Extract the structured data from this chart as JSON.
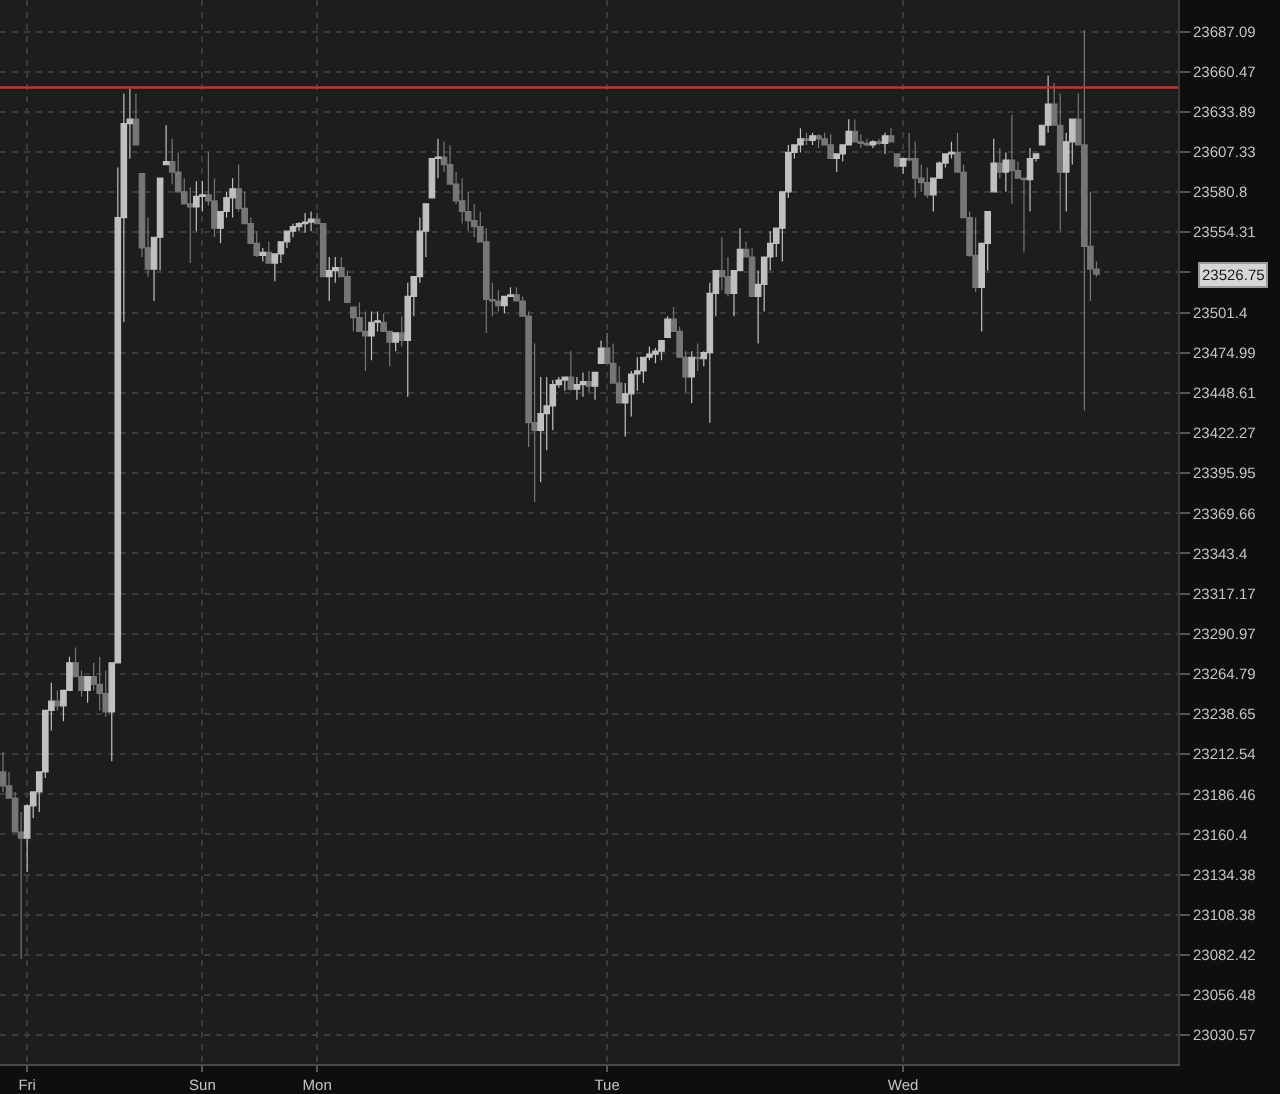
{
  "chart_data": {
    "type": "candlestick",
    "log": true,
    "grid": true,
    "categories": [
      null,
      null,
      null,
      null,
      "Fri",
      null,
      null,
      null,
      null,
      null,
      null,
      null,
      null,
      null,
      null,
      null,
      null,
      null,
      null,
      null,
      null,
      null,
      null,
      null,
      null,
      null,
      null,
      null,
      null,
      null,
      null,
      null,
      null,
      "Sun",
      null,
      null,
      null,
      null,
      null,
      null,
      null,
      null,
      null,
      null,
      null,
      null,
      null,
      null,
      null,
      null,
      null,
      null,
      "Mon",
      null,
      null,
      null,
      null,
      null,
      null,
      null,
      null,
      null,
      null,
      null,
      null,
      null,
      null,
      null,
      null,
      null,
      null,
      null,
      null,
      null,
      null,
      null,
      null,
      null,
      null,
      null,
      null,
      null,
      null,
      null,
      null,
      null,
      null,
      null,
      null,
      null,
      null,
      null,
      null,
      null,
      null,
      null,
      null,
      null,
      null,
      null,
      "Tue",
      null,
      null,
      null,
      null,
      null,
      null,
      null,
      null,
      null,
      null,
      null,
      null,
      null,
      null,
      null,
      null,
      null,
      null,
      null,
      null,
      null,
      null,
      null,
      null,
      null,
      null,
      null,
      null,
      null,
      null,
      null,
      null,
      null,
      null,
      null,
      null,
      null,
      null,
      null,
      null,
      null,
      null,
      null,
      null,
      null,
      null,
      null,
      null,
      "Wed",
      null,
      null,
      null,
      null,
      null,
      null,
      null,
      null,
      null,
      null,
      null,
      null,
      null,
      null,
      null,
      null,
      null,
      null,
      null,
      null,
      null,
      null,
      null,
      null,
      null,
      null,
      null,
      null,
      null,
      null,
      null,
      null,
      null,
      null,
      null,
      null,
      null,
      null,
      null,
      null,
      null,
      null,
      null,
      null,
      null
    ],
    "ohlc": [
      [
        23201,
        23214,
        23188,
        23192
      ],
      [
        23192,
        23201,
        23184,
        23184
      ],
      [
        23184,
        23188,
        23162,
        23162
      ],
      [
        23162,
        23175,
        23080,
        23158
      ],
      [
        23158,
        23180,
        23136,
        23179
      ],
      [
        23179,
        23188,
        23171,
        23188
      ],
      [
        23188,
        23201,
        23175,
        23201
      ],
      [
        23201,
        23241,
        23197,
        23241
      ],
      [
        23241,
        23259,
        23228,
        23247
      ],
      [
        23247,
        23254,
        23241,
        23244
      ],
      [
        23244,
        23254,
        23234,
        23254
      ],
      [
        23254,
        23276,
        23254,
        23272
      ],
      [
        23272,
        23282,
        23263,
        23263
      ],
      [
        23263,
        23267,
        23250,
        23254
      ],
      [
        23254,
        23263,
        23246,
        23263
      ],
      [
        23263,
        23272,
        23254,
        23258
      ],
      [
        23258,
        23276,
        23241,
        23252
      ],
      [
        23252,
        23267,
        23237,
        23240
      ],
      [
        23240,
        23272,
        23208,
        23272
      ],
      [
        23272,
        23597,
        23272,
        23564
      ],
      [
        23564,
        23646,
        23495,
        23626
      ],
      [
        23626,
        23649,
        23603,
        23629
      ],
      [
        23629,
        23646,
        23612,
        23612
      ],
      [
        23593,
        23593,
        23538,
        23544
      ],
      [
        23544,
        23564,
        23525,
        23530
      ],
      [
        23530,
        23551,
        23509,
        23551
      ],
      [
        23551,
        23590,
        23529,
        23590
      ],
      [
        23599,
        23625,
        23599,
        23601
      ],
      [
        23601,
        23616,
        23586,
        23594
      ],
      [
        23594,
        23607,
        23581,
        23581
      ],
      [
        23581,
        23590,
        23573,
        23573
      ],
      [
        23573,
        23584,
        23534,
        23571
      ],
      [
        23571,
        23588,
        23555,
        23578
      ],
      [
        23578,
        23588,
        23568,
        23579
      ],
      [
        23579,
        23607,
        23572,
        23575
      ],
      [
        23575,
        23590,
        23551,
        23557
      ],
      [
        23557,
        23568,
        23547,
        23568
      ],
      [
        23568,
        23581,
        23564,
        23577
      ],
      [
        23577,
        23590,
        23564,
        23583
      ],
      [
        23583,
        23599,
        23568,
        23570
      ],
      [
        23570,
        23581,
        23560,
        23560
      ],
      [
        23560,
        23564,
        23547,
        23547
      ],
      [
        23547,
        23555,
        23538,
        23539
      ],
      [
        23539,
        23544,
        23535,
        23541
      ],
      [
        23541,
        23548,
        23534,
        23534
      ],
      [
        23534,
        23540,
        23522,
        23540
      ],
      [
        23540,
        23548,
        23534,
        23548
      ],
      [
        23548,
        23555,
        23544,
        23555
      ],
      [
        23555,
        23560,
        23551,
        23558
      ],
      [
        23558,
        23561,
        23555,
        23560
      ],
      [
        23560,
        23567,
        23554,
        23561
      ],
      [
        23561,
        23568,
        23555,
        23563
      ],
      [
        23563,
        23567,
        23560,
        23560
      ],
      [
        23560,
        23560,
        23525,
        23525
      ],
      [
        23525,
        23538,
        23509,
        23529
      ],
      [
        23529,
        23538,
        23521,
        23531
      ],
      [
        23531,
        23538,
        23525,
        23525
      ],
      [
        23525,
        23529,
        23508,
        23508
      ],
      [
        23505,
        23505,
        23489,
        23498
      ],
      [
        23498,
        23508,
        23489,
        23489
      ],
      [
        23489,
        23502,
        23463,
        23486
      ],
      [
        23486,
        23502,
        23470,
        23495
      ],
      [
        23495,
        23502,
        23489,
        23496
      ],
      [
        23495,
        23501,
        23489,
        23489
      ],
      [
        23489,
        23489,
        23466,
        23482
      ],
      [
        23482,
        23488,
        23476,
        23488
      ],
      [
        23488,
        23499,
        23479,
        23483
      ],
      [
        23483,
        23521,
        23446,
        23512
      ],
      [
        23512,
        23525,
        23499,
        23525
      ],
      [
        23525,
        23564,
        23521,
        23555
      ],
      [
        23555,
        23573,
        23538,
        23573
      ],
      [
        23577,
        23603,
        23577,
        23603
      ],
      [
        23603,
        23616,
        23590,
        23604
      ],
      [
        23604,
        23614,
        23594,
        23599
      ],
      [
        23599,
        23612,
        23586,
        23586
      ],
      [
        23586,
        23594,
        23573,
        23575
      ],
      [
        23575,
        23590,
        23560,
        23568
      ],
      [
        23568,
        23581,
        23555,
        23562
      ],
      [
        23562,
        23573,
        23551,
        23558
      ],
      [
        23558,
        23568,
        23548,
        23548
      ],
      [
        23548,
        23557,
        23488,
        23510
      ],
      [
        23510,
        23521,
        23499,
        23509
      ],
      [
        23509,
        23516,
        23502,
        23506
      ],
      [
        23506,
        23512,
        23501,
        23512
      ],
      [
        23512,
        23518,
        23512,
        23513
      ],
      [
        23513,
        23518,
        23509,
        23509
      ],
      [
        23509,
        23512,
        23499,
        23499
      ],
      [
        23499,
        23502,
        23413,
        23429
      ],
      [
        23429,
        23481,
        23377,
        23424
      ],
      [
        23424,
        23459,
        23390,
        23435
      ],
      [
        23435,
        23459,
        23411,
        23440
      ],
      [
        23440,
        23457,
        23424,
        23454
      ],
      [
        23454,
        23459,
        23452,
        23457
      ],
      [
        23457,
        23459,
        23450,
        23459
      ],
      [
        23459,
        23476,
        23450,
        23451
      ],
      [
        23451,
        23459,
        23444,
        23454
      ],
      [
        23454,
        23462,
        23446,
        23456
      ],
      [
        23456,
        23463,
        23449,
        23453
      ],
      [
        23453,
        23462,
        23444,
        23462
      ],
      [
        23468,
        23483,
        23468,
        23478
      ],
      [
        23478,
        23488,
        23468,
        23468
      ],
      [
        23468,
        23481,
        23455,
        23455
      ],
      [
        23455,
        23466,
        23442,
        23442
      ],
      [
        23442,
        23455,
        23420,
        23448
      ],
      [
        23448,
        23463,
        23433,
        23461
      ],
      [
        23461,
        23472,
        23450,
        23463
      ],
      [
        23463,
        23472,
        23455,
        23472
      ],
      [
        23472,
        23479,
        23470,
        23474
      ],
      [
        23474,
        23478,
        23468,
        23476
      ],
      [
        23476,
        23483,
        23470,
        23483
      ],
      [
        23485,
        23499,
        23485,
        23497
      ],
      [
        23497,
        23505,
        23489,
        23489
      ],
      [
        23489,
        23492,
        23472,
        23472
      ],
      [
        23472,
        23476,
        23449,
        23459
      ],
      [
        23459,
        23476,
        23442,
        23472
      ],
      [
        23472,
        23481,
        23463,
        23471
      ],
      [
        23471,
        23476,
        23466,
        23475
      ],
      [
        23475,
        23521,
        23429,
        23514
      ],
      [
        23514,
        23529,
        23499,
        23529
      ],
      [
        23529,
        23551,
        23516,
        23525
      ],
      [
        23525,
        23538,
        23512,
        23514
      ],
      [
        23514,
        23529,
        23499,
        23529
      ],
      [
        23529,
        23557,
        23529,
        23543
      ],
      [
        23543,
        23548,
        23538,
        23538
      ],
      [
        23538,
        23544,
        23512,
        23512
      ],
      [
        23512,
        23529,
        23481,
        23520
      ],
      [
        23520,
        23538,
        23502,
        23538
      ],
      [
        23538,
        23555,
        23529,
        23547
      ],
      [
        23547,
        23557,
        23538,
        23557
      ],
      [
        23557,
        23581,
        23535,
        23581
      ],
      [
        23581,
        23612,
        23577,
        23607
      ],
      [
        23607,
        23612,
        23603,
        23612
      ],
      [
        23612,
        23623,
        23607,
        23616
      ],
      [
        23616,
        23620,
        23612,
        23615
      ],
      [
        23615,
        23620,
        23612,
        23618
      ],
      [
        23618,
        23619,
        23610,
        23616
      ],
      [
        23616,
        23620,
        23612,
        23612
      ],
      [
        23612,
        23619,
        23603,
        23603
      ],
      [
        23603,
        23606,
        23594,
        23606
      ],
      [
        23606,
        23612,
        23601,
        23612
      ],
      [
        23612,
        23629,
        23612,
        23621
      ],
      [
        23621,
        23629,
        23614,
        23614
      ],
      [
        23614,
        23619,
        23610,
        23613
      ],
      [
        23613,
        23616,
        23611,
        23612
      ],
      [
        23612,
        23615,
        23610,
        23614
      ],
      [
        23614,
        23616,
        23612,
        23613
      ],
      [
        23613,
        23620,
        23606,
        23618
      ],
      [
        23618,
        23623,
        23614,
        23614
      ],
      [
        23606,
        23606,
        23597,
        23598
      ],
      [
        23598,
        23603,
        23593,
        23603
      ],
      [
        23603,
        23620,
        23601,
        23602
      ],
      [
        23603,
        23614,
        23577,
        23590
      ],
      [
        23590,
        23599,
        23581,
        23587
      ],
      [
        23587,
        23597,
        23577,
        23579
      ],
      [
        23579,
        23590,
        23568,
        23590
      ],
      [
        23590,
        23601,
        23590,
        23600
      ],
      [
        23600,
        23606,
        23597,
        23606
      ],
      [
        23606,
        23614,
        23603,
        23607
      ],
      [
        23607,
        23620,
        23594,
        23594
      ],
      [
        23594,
        23599,
        23564,
        23564
      ],
      [
        23564,
        23568,
        23538,
        23539
      ],
      [
        23539,
        23564,
        23515,
        23518
      ],
      [
        23518,
        23547,
        23489,
        23547
      ],
      [
        23547,
        23568,
        23529,
        23568
      ],
      [
        23581,
        23616,
        23581,
        23600
      ],
      [
        23600,
        23610,
        23590,
        23594
      ],
      [
        23594,
        23607,
        23581,
        23602
      ],
      [
        23602,
        23632,
        23573,
        23595
      ],
      [
        23595,
        23601,
        23590,
        23590
      ],
      [
        23590,
        23590,
        23541,
        23589
      ],
      [
        23589,
        23610,
        23568,
        23603
      ],
      [
        23603,
        23606,
        23601,
        23606
      ],
      [
        23612,
        23625,
        23612,
        23625
      ],
      [
        23625,
        23658,
        23620,
        23639
      ],
      [
        23639,
        23653,
        23625,
        23625
      ],
      [
        23625,
        23646,
        23555,
        23594
      ],
      [
        23594,
        23620,
        23568,
        23614
      ],
      [
        23614,
        23629,
        23599,
        23629
      ],
      [
        23629,
        23646,
        23612,
        23612
      ],
      [
        23612,
        23688,
        23437,
        23545
      ],
      [
        23545,
        23581,
        23509,
        23530
      ],
      [
        23530,
        23535,
        23525,
        23526.75
      ],
      null,
      null,
      null,
      null,
      null,
      null,
      null,
      null,
      null,
      null,
      null,
      null,
      null
    ],
    "colors": [
      "#767676",
      "#767676",
      "#767676",
      "#767676",
      "#c0c0c0",
      "#c0c0c0",
      "#c0c0c0",
      "#c0c0c0",
      "#c0c0c0",
      "#767676",
      "#c0c0c0",
      "#c0c0c0",
      "#767676",
      "#767676",
      "#c0c0c0",
      "#767676",
      "#767676",
      "#767676",
      "#c0c0c0",
      "#c0c0c0",
      "#c0c0c0",
      "#c0c0c0",
      "#767676",
      "#767676",
      "#767676",
      "#c0c0c0",
      "#c0c0c0",
      "#c0c0c0",
      "#767676",
      "#767676",
      "#767676",
      "#767676",
      "#c0c0c0",
      "#c0c0c0",
      "#767676",
      "#767676",
      "#c0c0c0",
      "#c0c0c0",
      "#c0c0c0",
      "#767676",
      "#767676",
      "#767676",
      "#767676",
      "#c0c0c0",
      "#767676",
      "#c0c0c0",
      "#c0c0c0",
      "#c0c0c0",
      "#c0c0c0",
      "#c0c0c0",
      "#c0c0c0",
      "#c0c0c0",
      "#767676",
      "#767676",
      "#c0c0c0",
      "#c0c0c0",
      "#767676",
      "#767676",
      "#767676",
      "#767676",
      "#767676",
      "#c0c0c0",
      "#c0c0c0",
      "#767676",
      "#767676",
      "#c0c0c0",
      "#767676",
      "#c0c0c0",
      "#c0c0c0",
      "#c0c0c0",
      "#c0c0c0",
      "#c0c0c0",
      "#c0c0c0",
      "#767676",
      "#767676",
      "#767676",
      "#767676",
      "#767676",
      "#767676",
      "#767676",
      "#767676",
      "#767676",
      "#767676",
      "#c0c0c0",
      "#c0c0c0",
      "#767676",
      "#767676",
      "#767676",
      "#767676",
      "#c0c0c0",
      "#c0c0c0",
      "#c0c0c0",
      "#c0c0c0",
      "#c0c0c0",
      "#767676",
      "#c0c0c0",
      "#c0c0c0",
      "#767676",
      "#c0c0c0",
      "#c0c0c0",
      "#767676",
      "#767676",
      "#767676",
      "#c0c0c0",
      "#c0c0c0",
      "#c0c0c0",
      "#c0c0c0",
      "#c0c0c0",
      "#c0c0c0",
      "#c0c0c0",
      "#c0c0c0",
      "#767676",
      "#767676",
      "#767676",
      "#c0c0c0",
      "#767676",
      "#c0c0c0",
      "#c0c0c0",
      "#c0c0c0",
      "#767676",
      "#767676",
      "#c0c0c0",
      "#c0c0c0",
      "#767676",
      "#767676",
      "#c0c0c0",
      "#c0c0c0",
      "#c0c0c0",
      "#c0c0c0",
      "#c0c0c0",
      "#c0c0c0",
      "#c0c0c0",
      "#c0c0c0",
      "#767676",
      "#c0c0c0",
      "#767676",
      "#767676",
      "#767676",
      "#c0c0c0",
      "#c0c0c0",
      "#c0c0c0",
      "#767676",
      "#767676",
      "#767676",
      "#c0c0c0",
      "#767676",
      "#c0c0c0",
      "#767676",
      "#767676",
      "#c0c0c0",
      "#767676",
      "#767676",
      "#767676",
      "#767676",
      "#c0c0c0",
      "#c0c0c0",
      "#c0c0c0",
      "#c0c0c0",
      "#767676",
      "#767676",
      "#767676",
      "#767676",
      "#c0c0c0",
      "#c0c0c0",
      "#c0c0c0",
      "#767676",
      "#c0c0c0",
      "#767676",
      "#767676",
      "#767676",
      "#c0c0c0",
      "#c0c0c0",
      "#c0c0c0",
      "#c0c0c0",
      "#767676",
      "#767676",
      "#c0c0c0",
      "#c0c0c0",
      "#767676",
      "#767676",
      "#767676",
      "#767676",
      null,
      null,
      null,
      null,
      null,
      null,
      null,
      null,
      null,
      null,
      null,
      null,
      null
    ],
    "ylim": [
      23012,
      23708
    ],
    "yticks": [
      23030.57,
      23056.48,
      23082.42,
      23108.38,
      23134.38,
      23160.4,
      23186.46,
      23212.54,
      23238.65,
      23264.79,
      23290.97,
      23317.17,
      23343.4,
      23369.66,
      23395.95,
      23422.27,
      23448.61,
      23474.99,
      23501.4,
      {
        "value": 23527.84,
        "label": null
      },
      23554.31,
      23580.8,
      23607.33,
      23633.89,
      23660.47,
      23687.09
    ],
    "ref_lines": [
      {
        "axis": "y",
        "value": 23650,
        "color": "#d3302a"
      }
    ],
    "annotations": [
      "23526.75"
    ]
  }
}
